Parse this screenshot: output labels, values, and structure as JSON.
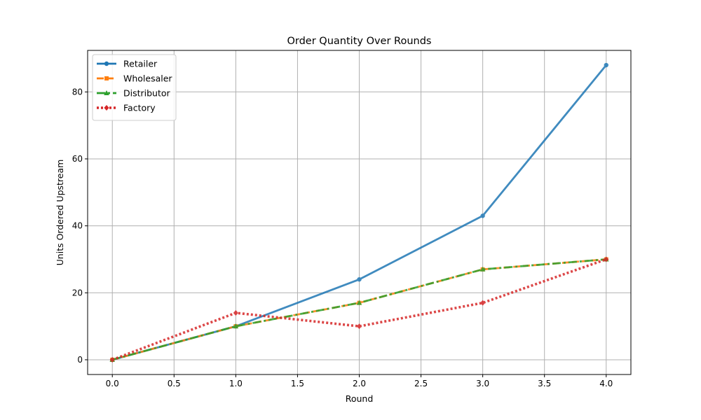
{
  "chart_data": {
    "type": "line",
    "title": "Order Quantity Over Rounds",
    "xlabel": "Round",
    "ylabel": "Units Ordered Upstream",
    "xlim": [
      -0.2,
      4.2
    ],
    "ylim": [
      -4.4,
      92.4
    ],
    "x_ticks": [
      "0.0",
      "0.5",
      "1.0",
      "1.5",
      "2.0",
      "2.5",
      "3.0",
      "3.5",
      "4.0"
    ],
    "y_ticks": [
      "0",
      "20",
      "40",
      "60",
      "80"
    ],
    "grid": true,
    "legend_position": "top-left",
    "x": [
      0,
      1,
      2,
      3,
      4
    ],
    "series": [
      {
        "name": "Retailer",
        "values": [
          0,
          10,
          24,
          43,
          88
        ],
        "color": "#1f77b4",
        "marker": "circle",
        "linestyle": "solid"
      },
      {
        "name": "Wholesaler",
        "values": [
          0,
          10,
          17,
          27,
          30
        ],
        "color": "#ff7f0e",
        "marker": "square",
        "linestyle": "dashed"
      },
      {
        "name": "Distributor",
        "values": [
          0,
          10,
          17,
          27,
          30
        ],
        "color": "#2ca02c",
        "marker": "triangle",
        "linestyle": "dashdot"
      },
      {
        "name": "Factory",
        "values": [
          0,
          14,
          10,
          17,
          30
        ],
        "color": "#d62728",
        "marker": "diamond",
        "linestyle": "dotted"
      }
    ]
  }
}
